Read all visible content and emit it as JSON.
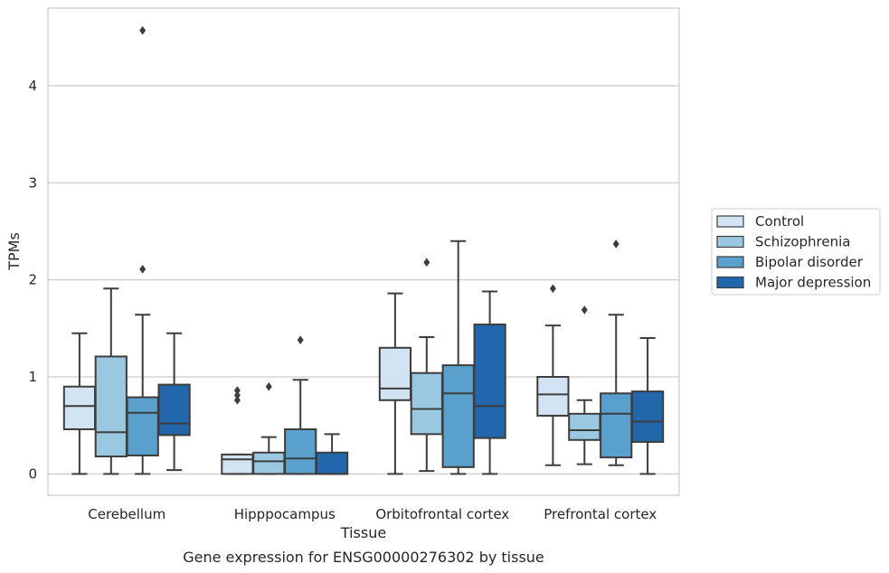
{
  "chart_data": {
    "type": "box",
    "title": "",
    "caption": "Gene expression for ENSG00000276302 by tissue",
    "xlabel": "Tissue",
    "ylabel": "TPMs",
    "ylim": [
      -0.22,
      4.8
    ],
    "yticks": [
      0,
      1,
      2,
      3,
      4
    ],
    "grid": "horizontal",
    "legend_position": "right",
    "categories": [
      "Cerebellum",
      "Hipppocampus",
      "Orbitofrontal cortex",
      "Prefrontal cortex"
    ],
    "series": [
      {
        "name": "Control",
        "color": "#d2e3f3",
        "boxes": [
          {
            "whislo": 0.0,
            "q1": 0.46,
            "med": 0.7,
            "q3": 0.9,
            "whishi": 1.45,
            "fliers": []
          },
          {
            "whislo": 0.0,
            "q1": 0.0,
            "med": 0.15,
            "q3": 0.2,
            "whishi": 0.2,
            "fliers": [
              0.76,
              0.81,
              0.86
            ]
          },
          {
            "whislo": 0.0,
            "q1": 0.76,
            "med": 0.88,
            "q3": 1.3,
            "whishi": 1.86,
            "fliers": []
          },
          {
            "whislo": 0.09,
            "q1": 0.6,
            "med": 0.82,
            "q3": 1.0,
            "whishi": 1.53,
            "fliers": [
              1.91
            ]
          }
        ]
      },
      {
        "name": "Schizophrenia",
        "color": "#9ac8e0",
        "boxes": [
          {
            "whislo": 0.0,
            "q1": 0.18,
            "med": 0.43,
            "q3": 1.21,
            "whishi": 1.91,
            "fliers": []
          },
          {
            "whislo": 0.0,
            "q1": 0.0,
            "med": 0.13,
            "q3": 0.22,
            "whishi": 0.38,
            "fliers": [
              0.9
            ]
          },
          {
            "whislo": 0.03,
            "q1": 0.41,
            "med": 0.67,
            "q3": 1.04,
            "whishi": 1.41,
            "fliers": [
              2.18
            ]
          },
          {
            "whislo": 0.1,
            "q1": 0.35,
            "med": 0.45,
            "q3": 0.62,
            "whishi": 0.76,
            "fliers": [
              1.69
            ]
          }
        ]
      },
      {
        "name": "Bipolar disorder",
        "color": "#5aa0cd",
        "boxes": [
          {
            "whislo": 0.0,
            "q1": 0.19,
            "med": 0.63,
            "q3": 0.79,
            "whishi": 1.64,
            "fliers": [
              2.11,
              4.57
            ]
          },
          {
            "whislo": 0.0,
            "q1": 0.0,
            "med": 0.16,
            "q3": 0.46,
            "whishi": 0.97,
            "fliers": [
              1.38
            ]
          },
          {
            "whislo": 0.0,
            "q1": 0.07,
            "med": 0.83,
            "q3": 1.12,
            "whishi": 2.4,
            "fliers": []
          },
          {
            "whislo": 0.09,
            "q1": 0.17,
            "med": 0.62,
            "q3": 0.83,
            "whishi": 1.64,
            "fliers": [
              2.37
            ]
          }
        ]
      },
      {
        "name": "Major depression",
        "color": "#2266ac",
        "boxes": [
          {
            "whislo": 0.04,
            "q1": 0.4,
            "med": 0.52,
            "q3": 0.92,
            "whishi": 1.45,
            "fliers": []
          },
          {
            "whislo": 0.0,
            "q1": 0.0,
            "med": 0.0,
            "q3": 0.22,
            "whishi": 0.41,
            "fliers": []
          },
          {
            "whislo": 0.0,
            "q1": 0.37,
            "med": 0.7,
            "q3": 1.54,
            "whishi": 1.88,
            "fliers": []
          },
          {
            "whislo": 0.0,
            "q1": 0.33,
            "med": 0.54,
            "q3": 0.85,
            "whishi": 1.4,
            "fliers": []
          }
        ]
      }
    ]
  },
  "colors": {
    "grid": "#cccccc",
    "frame": "#cccccc",
    "box_edge": "#3d3d3d"
  }
}
